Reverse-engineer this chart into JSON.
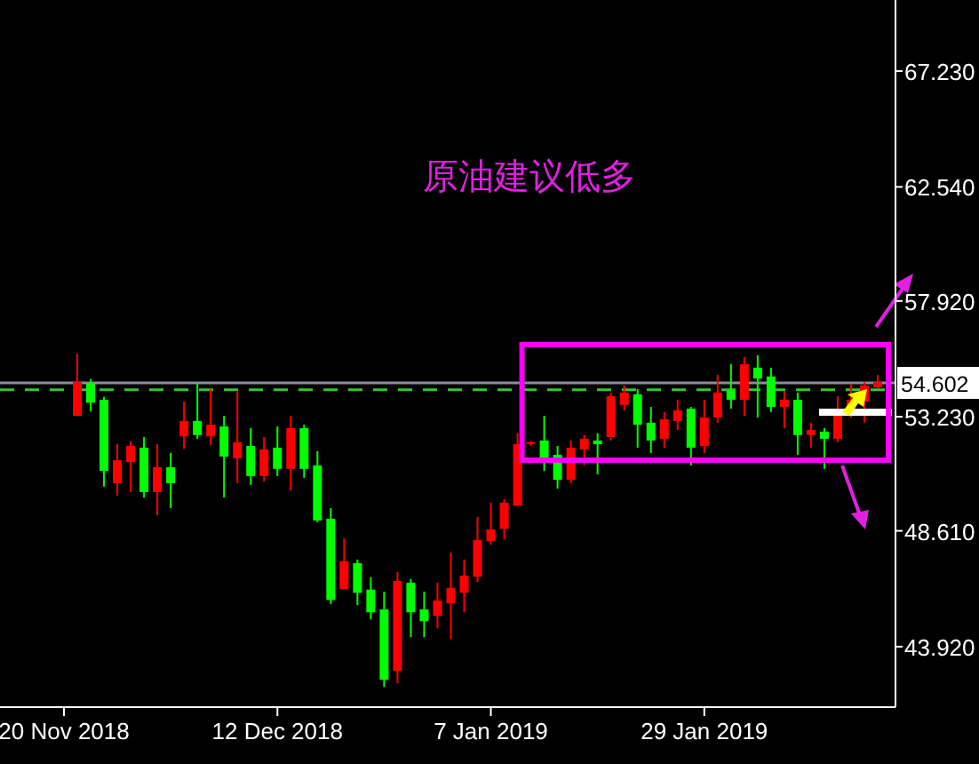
{
  "chart_data": {
    "type": "candlestick",
    "categories": [
      "20 Nov 2018",
      null,
      null,
      null,
      null,
      null,
      null,
      null,
      null,
      null,
      null,
      null,
      null,
      null,
      null,
      null,
      "12 Dec 2018",
      null,
      null,
      null,
      null,
      null,
      null,
      null,
      null,
      null,
      null,
      null,
      null,
      null,
      null,
      null,
      "7 Jan 2019",
      null,
      null,
      null,
      null,
      null,
      null,
      null,
      null,
      null,
      null,
      null,
      null,
      null,
      null,
      null,
      "29 Jan 2019",
      null,
      null,
      null,
      null,
      null,
      null,
      null,
      null,
      null,
      null,
      null,
      null,
      null
    ],
    "ohlc": [
      null,
      [
        53.27,
        55.79,
        53.27,
        54.64
      ],
      [
        54.59,
        54.76,
        53.44,
        53.8
      ],
      [
        53.92,
        54.04,
        50.4,
        51.04
      ],
      [
        50.54,
        52.12,
        50.04,
        51.47
      ],
      [
        51.4,
        52.25,
        50.18,
        52.05
      ],
      [
        51.98,
        52.41,
        49.96,
        50.18
      ],
      [
        50.18,
        52.12,
        49.25,
        51.19
      ],
      [
        51.19,
        51.76,
        49.53,
        50.54
      ],
      [
        52.44,
        53.85,
        51.93,
        53.06
      ],
      [
        53.06,
        54.59,
        52.34,
        52.49
      ],
      [
        52.44,
        54.35,
        52.07,
        52.91
      ],
      [
        52.84,
        53.27,
        49.96,
        51.62
      ],
      [
        51.55,
        54.23,
        50.54,
        52.2
      ],
      [
        52.05,
        52.77,
        50.47,
        50.83
      ],
      [
        50.83,
        52.41,
        50.61,
        51.91
      ],
      [
        51.98,
        52.84,
        50.83,
        51.12
      ],
      [
        51.12,
        53.27,
        50.25,
        52.77
      ],
      [
        52.77,
        52.91,
        50.76,
        51.12
      ],
      [
        51.26,
        51.84,
        48.96,
        49.03
      ],
      [
        49.1,
        49.53,
        45.65,
        45.81
      ],
      [
        46.25,
        48.31,
        46.25,
        47.38
      ],
      [
        47.3,
        47.45,
        45.6,
        46.1
      ],
      [
        46.23,
        46.73,
        45.02,
        45.31
      ],
      [
        45.43,
        46.15,
        42.29,
        42.58
      ],
      [
        42.94,
        46.94,
        42.43,
        46.58
      ],
      [
        46.51,
        46.66,
        44.3,
        45.31
      ],
      [
        45.43,
        46.15,
        44.3,
        44.95
      ],
      [
        45.17,
        46.51,
        44.66,
        45.79
      ],
      [
        45.67,
        47.73,
        44.23,
        46.3
      ],
      [
        46.1,
        47.45,
        45.31,
        46.8
      ],
      [
        46.75,
        49.17,
        46.53,
        48.24
      ],
      [
        48.19,
        49.75,
        48.04,
        48.67
      ],
      [
        48.69,
        49.89,
        48.26,
        49.75
      ],
      [
        49.63,
        52.57,
        49.63,
        52.12
      ],
      [
        52.15,
        52.25,
        52.05,
        52.2
      ],
      [
        52.27,
        53.27,
        51.04,
        51.57
      ],
      [
        51.69,
        52.05,
        50.32,
        50.68
      ],
      [
        50.68,
        52.27,
        50.54,
        51.98
      ],
      [
        51.91,
        52.49,
        51.26,
        52.34
      ],
      [
        52.27,
        52.57,
        50.9,
        52.12
      ],
      [
        52.41,
        54.21,
        52.27,
        54.07
      ],
      [
        53.71,
        54.5,
        53.49,
        54.21
      ],
      [
        54.14,
        54.35,
        51.98,
        52.91
      ],
      [
        52.99,
        53.63,
        51.76,
        52.27
      ],
      [
        52.34,
        53.42,
        51.98,
        53.13
      ],
      [
        53.06,
        53.92,
        52.7,
        53.49
      ],
      [
        53.56,
        53.63,
        51.26,
        51.98
      ],
      [
        52.05,
        53.92,
        51.76,
        53.2
      ],
      [
        53.2,
        54.93,
        52.99,
        54.21
      ],
      [
        54.28,
        55.36,
        53.56,
        53.92
      ],
      [
        53.92,
        55.65,
        53.27,
        55.36
      ],
      [
        55.22,
        55.72,
        53.2,
        54.78
      ],
      [
        54.86,
        55.22,
        53.42,
        53.63
      ],
      [
        53.63,
        54.28,
        52.77,
        53.92
      ],
      [
        53.92,
        54.21,
        51.69,
        52.49
      ],
      [
        52.49,
        52.99,
        51.98,
        52.7
      ],
      [
        52.63,
        52.77,
        51.12,
        52.34
      ],
      [
        52.34,
        54.07,
        52.2,
        53.35
      ],
      [
        53.35,
        54.57,
        53.2,
        53.92
      ],
      [
        53.85,
        54.64,
        52.99,
        54.5
      ],
      [
        54.42,
        54.93,
        54.35,
        54.64
      ]
    ],
    "colors": [
      null,
      "#ff0000",
      "#00ff00",
      "#00ff00",
      "#ff0000",
      "#ff0000",
      "#00ff00",
      "#ff0000",
      "#00ff00",
      "#ff0000",
      "#00ff00",
      "#ff0000",
      "#00ff00",
      "#ff0000",
      "#00ff00",
      "#ff0000",
      "#00ff00",
      "#ff0000",
      "#00ff00",
      "#00ff00",
      "#00ff00",
      "#ff0000",
      "#00ff00",
      "#00ff00",
      "#00ff00",
      "#ff0000",
      "#00ff00",
      "#00ff00",
      "#ff0000",
      "#ff0000",
      "#ff0000",
      "#ff0000",
      "#ff0000",
      "#ff0000",
      "#ff0000",
      "#ff0000",
      "#00ff00",
      "#00ff00",
      "#ff0000",
      "#ff0000",
      "#00ff00",
      "#ff0000",
      "#ff0000",
      "#00ff00",
      "#00ff00",
      "#ff0000",
      "#ff0000",
      "#00ff00",
      "#ff0000",
      "#ff0000",
      "#00ff00",
      "#ff0000",
      "#00ff00",
      "#00ff00",
      "#ff0000",
      "#00ff00",
      "#ff0000",
      "#00ff00",
      "#ff0000",
      "#ff0000",
      "#ff0000",
      "#ff0000"
    ],
    "ylim": [
      41.47,
      70.11
    ],
    "yticks": [
      {
        "value": 43.92,
        "label": "43.920"
      },
      {
        "value": 48.61,
        "label": "48.610"
      },
      {
        "value": 53.23,
        "label": "53.230"
      },
      {
        "value": 57.92,
        "label": "57.920"
      },
      {
        "value": 62.54,
        "label": "62.540"
      },
      {
        "value": 67.23,
        "label": "67.230"
      }
    ],
    "ref_lines": [
      {
        "axis": "y",
        "value": 54.602,
        "label": "54.602",
        "color": "#8c8c9c",
        "line_style": "solid"
      },
      {
        "axis": "y",
        "value": 54.32,
        "label": null,
        "color": "#32c832",
        "line_style": "dashed"
      }
    ],
    "annotations": [
      "原油建议低多"
    ]
  }
}
